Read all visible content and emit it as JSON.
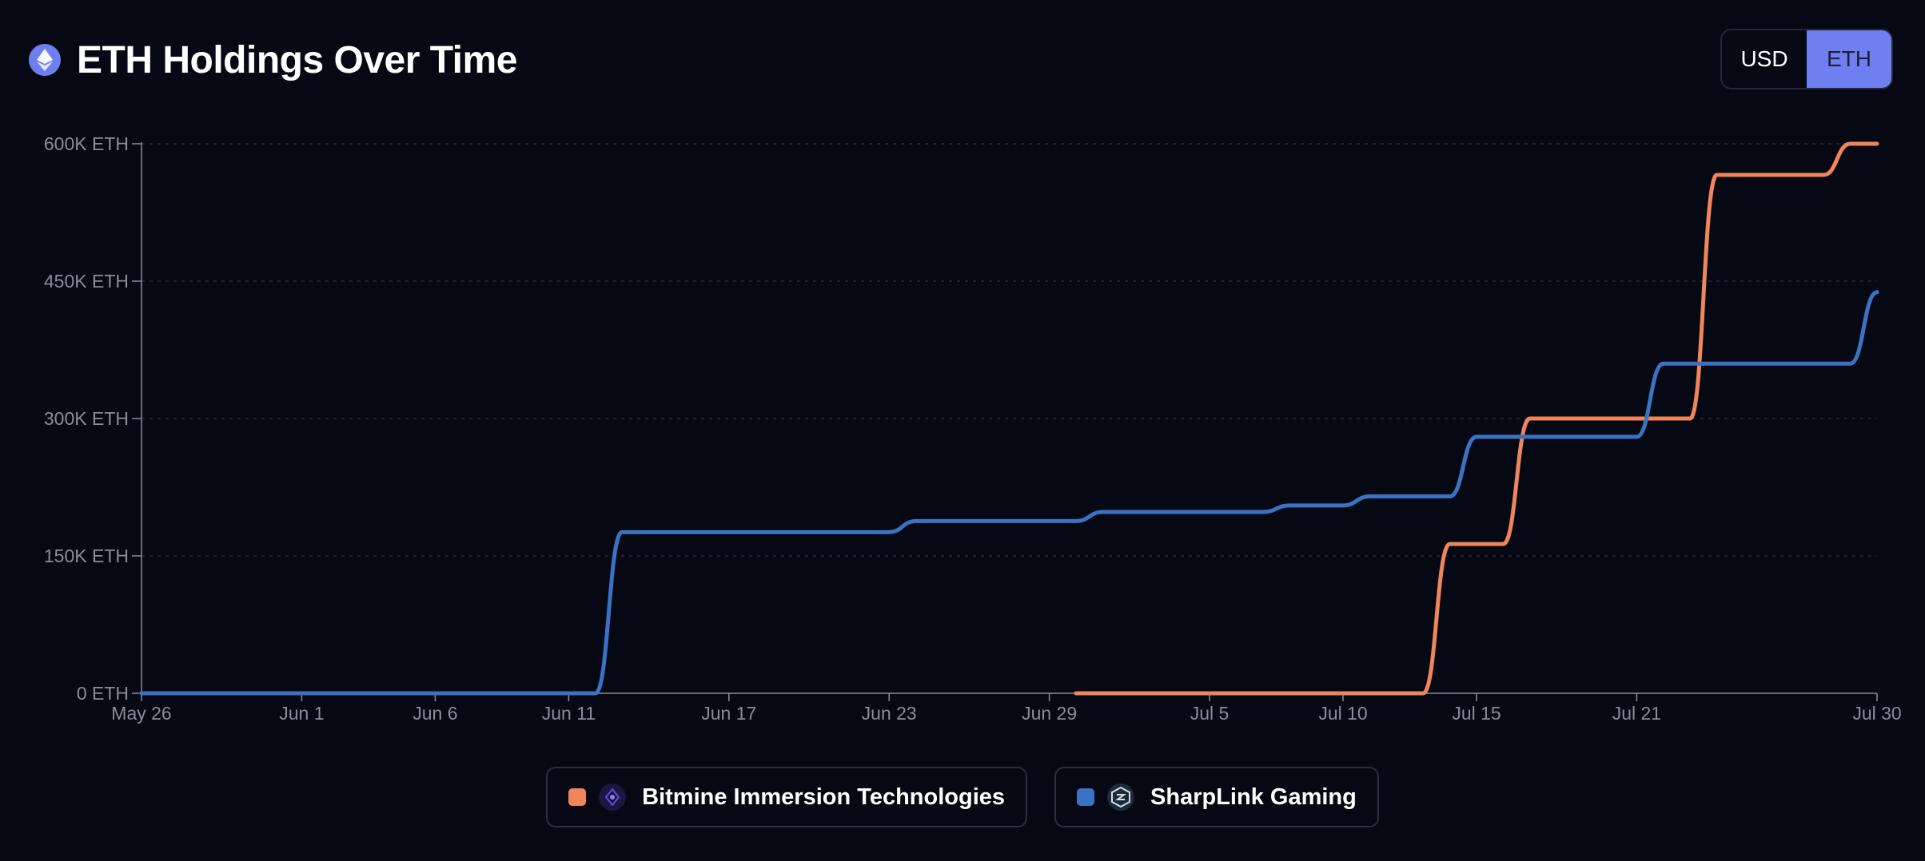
{
  "header": {
    "title": "ETH Holdings Over Time",
    "logo_icon": "ethereum-icon"
  },
  "toggle": {
    "usd_label": "USD",
    "eth_label": "ETH",
    "selected": "ETH"
  },
  "colors": {
    "background": "#060914",
    "accent": "#6f7ff0",
    "bitmine": "#f0855a",
    "sharplink": "#3a73c4",
    "axis": "#8a8d99",
    "grid": "#2a2d3c"
  },
  "legend": [
    {
      "label": "Bitmine Immersion Technologies",
      "color": "#f0855a",
      "icon": "bitmine-logo-icon"
    },
    {
      "label": "SharpLink Gaming",
      "color": "#3a73c4",
      "icon": "sharplink-logo-icon"
    }
  ],
  "chart_data": {
    "type": "line",
    "x_ticks": [
      "2025-05-26",
      "2025-06-01",
      "2025-06-06",
      "2025-06-11",
      "2025-06-17",
      "2025-06-23",
      "2025-06-29",
      "2025-07-05",
      "2025-07-10",
      "2025-07-15",
      "2025-07-21",
      "2025-07-30"
    ],
    "x_tick_labels": [
      "May 26",
      "Jun 1",
      "Jun 6",
      "Jun 11",
      "Jun 17",
      "Jun 23",
      "Jun 29",
      "Jul 5",
      "Jul 10",
      "Jul 15",
      "Jul 21",
      "Jul 30"
    ],
    "xlim": [
      "2025-05-26",
      "2025-07-30"
    ],
    "y_ticks": [
      0,
      150000,
      300000,
      450000,
      600000
    ],
    "y_tick_labels": [
      "0 ETH",
      "150K ETH",
      "300K ETH",
      "450K ETH",
      "600K ETH"
    ],
    "ylim": [
      0,
      600000
    ],
    "grid": true,
    "legend_position": "bottom",
    "series": [
      {
        "name": "Bitmine Immersion Technologies",
        "color": "#f0855a",
        "points": [
          [
            "2025-06-30",
            0
          ],
          [
            "2025-07-13",
            0
          ],
          [
            "2025-07-14",
            163000
          ],
          [
            "2025-07-16",
            163000
          ],
          [
            "2025-07-17",
            300000
          ],
          [
            "2025-07-23",
            300000
          ],
          [
            "2025-07-24",
            566000
          ],
          [
            "2025-07-28",
            566000
          ],
          [
            "2025-07-29",
            600000
          ],
          [
            "2025-07-30",
            600000
          ]
        ]
      },
      {
        "name": "SharpLink Gaming",
        "color": "#3a73c4",
        "points": [
          [
            "2025-05-26",
            0
          ],
          [
            "2025-06-12",
            0
          ],
          [
            "2025-06-13",
            176000
          ],
          [
            "2025-06-23",
            176000
          ],
          [
            "2025-06-24",
            188000
          ],
          [
            "2025-06-30",
            188000
          ],
          [
            "2025-07-01",
            198000
          ],
          [
            "2025-07-07",
            198000
          ],
          [
            "2025-07-08",
            205000
          ],
          [
            "2025-07-10",
            205000
          ],
          [
            "2025-07-11",
            215000
          ],
          [
            "2025-07-14",
            215000
          ],
          [
            "2025-07-15",
            280000
          ],
          [
            "2025-07-21",
            280000
          ],
          [
            "2025-07-22",
            360000
          ],
          [
            "2025-07-29",
            360000
          ],
          [
            "2025-07-30",
            438000
          ]
        ]
      }
    ]
  }
}
